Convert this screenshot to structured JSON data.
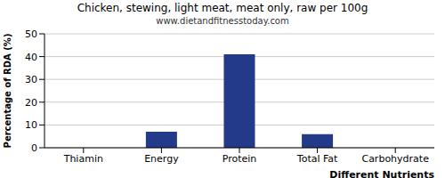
{
  "chart_data": {
    "type": "bar",
    "title": "Chicken, stewing, light meat, meat only, raw per 100g",
    "subtitle": "www.dietandfitnesstoday.com",
    "x_label": "Different Nutrients",
    "y_label": "Percentage of RDA (%)",
    "categories": [
      "Thiamin",
      "Energy",
      "Protein",
      "Total Fat",
      "Carbohydrate"
    ],
    "values": [
      0,
      7,
      41,
      6,
      0
    ],
    "color": "#233a8b",
    "ylim": [
      0,
      50
    ],
    "yticks": [
      0,
      10,
      20,
      30,
      40,
      50
    ],
    "grid": true
  }
}
